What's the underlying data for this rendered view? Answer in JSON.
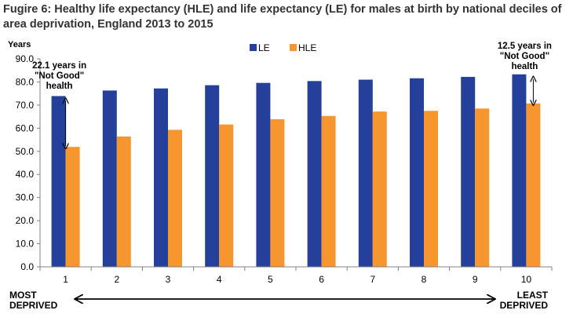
{
  "chart_data": {
    "type": "bar",
    "title": "Fugire 6: Healthy life expectancy (HLE) and life expectancy (LE) for males at birth by national deciles of area deprivation, England 2013 to 2015",
    "ylabel": "Years",
    "xlabel": "",
    "ylim": [
      0,
      90
    ],
    "yticks": [
      "0.0",
      "10.0",
      "20.0",
      "30.0",
      "40.0",
      "50.0",
      "60.0",
      "70.0",
      "80.0",
      "90.0"
    ],
    "categories": [
      "1",
      "2",
      "3",
      "4",
      "5",
      "6",
      "7",
      "8",
      "9",
      "10"
    ],
    "series": [
      {
        "name": "LE",
        "color": "#24409a",
        "values": [
          73.9,
          76.3,
          77.2,
          78.6,
          79.6,
          80.4,
          81.0,
          81.6,
          82.2,
          83.3
        ]
      },
      {
        "name": "HLE",
        "color": "#f7962f",
        "values": [
          51.9,
          56.4,
          59.3,
          61.6,
          63.9,
          65.3,
          67.2,
          67.5,
          68.5,
          70.7
        ]
      }
    ],
    "legend_position": "top-center",
    "grid": false,
    "annotations": [
      {
        "category": "1",
        "lines": [
          "22.1 years in",
          "\"Not Good\"",
          "health"
        ],
        "from": 51.9,
        "to": 73.9
      },
      {
        "category": "10",
        "lines": [
          "12.5 years in",
          "\"Not Good\"",
          "health"
        ],
        "from": 70.7,
        "to": 83.3
      }
    ],
    "deprivation_axis": {
      "left_lines": [
        "MOST",
        "DEPRIVED"
      ],
      "right_lines": [
        "LEAST",
        "DEPRIVED"
      ]
    }
  }
}
